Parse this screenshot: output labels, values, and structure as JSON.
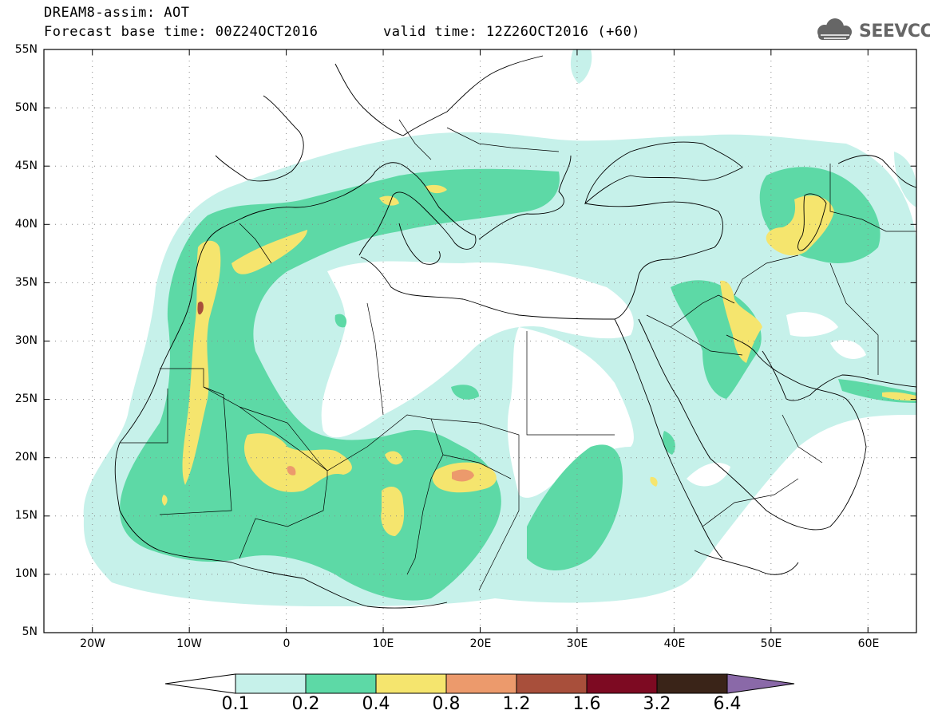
{
  "header": {
    "title": "DREAM8-assim: AOT",
    "forecast_base": "Forecast base time: 00Z24OCT2016",
    "valid_time": "valid time: 12Z26OCT2016 (+60)",
    "logo_text": "SEEVCCC"
  },
  "map": {
    "lat_labels": [
      "55N",
      "50N",
      "45N",
      "40N",
      "35N",
      "30N",
      "25N",
      "20N",
      "15N",
      "10N",
      "5N"
    ],
    "lon_labels": [
      "20W",
      "10W",
      "0",
      "10E",
      "20E",
      "30E",
      "40E",
      "50E",
      "60E"
    ],
    "extent": {
      "lon_min": -25,
      "lon_max": 65,
      "lat_min": 5,
      "lat_max": 55
    }
  },
  "colorbar": {
    "labels": [
      "0.1",
      "0.2",
      "0.4",
      "0.8",
      "1.2",
      "1.6",
      "3.2",
      "6.4"
    ],
    "colors": [
      "#ffffff",
      "#c6f1ea",
      "#5dd9a6",
      "#f5e56e",
      "#ec9a6c",
      "#a84f3b",
      "#7d0a22",
      "#3a2418",
      "#8a69a8"
    ]
  },
  "palette": {
    "level_01": "#c6f1ea",
    "level_02": "#5dd9a6",
    "level_04": "#f5e56e",
    "level_08": "#ec9a6c",
    "level_12": "#a84f3b"
  }
}
